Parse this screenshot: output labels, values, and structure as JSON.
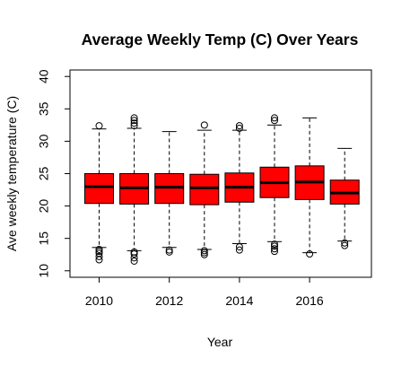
{
  "chart_data": {
    "type": "boxplot",
    "title": "Average Weekly Temp (C) Over Years",
    "xlabel": "Year",
    "ylabel": "Ave weekly temperature (C)",
    "ylim": [
      9,
      41
    ],
    "y_ticks": [
      10,
      15,
      20,
      25,
      30,
      35,
      40
    ],
    "x_ticks": [
      "2010",
      "2012",
      "2014",
      "2016"
    ],
    "categories": [
      "2010",
      "2011",
      "2012",
      "2013",
      "2014",
      "2015",
      "2016",
      "2017"
    ],
    "box_fill": "#ff0000",
    "grid": false,
    "series": [
      {
        "boxes": [
          {
            "q1": 20.4,
            "median": 23.0,
            "q3": 25.0,
            "whisker_low": 13.6,
            "whisker_high": 31.9,
            "outliers": [
              11.7,
              12.2,
              12.7,
              13.0,
              13.3,
              32.4
            ]
          },
          {
            "q1": 20.3,
            "median": 22.8,
            "q3": 25.0,
            "whisker_low": 13.1,
            "whisker_high": 32.0,
            "outliers": [
              11.5,
              12.0,
              12.6,
              12.9,
              32.4,
              32.8,
              33.2,
              33.6
            ]
          },
          {
            "q1": 20.4,
            "median": 22.9,
            "q3": 25.0,
            "whisker_low": 13.6,
            "whisker_high": 31.5,
            "outliers": [
              12.9,
              13.2
            ]
          },
          {
            "q1": 20.2,
            "median": 22.8,
            "q3": 24.9,
            "whisker_low": 13.3,
            "whisker_high": 31.7,
            "outliers": [
              12.5,
              12.8,
              13.1,
              32.5
            ]
          },
          {
            "q1": 20.6,
            "median": 22.9,
            "q3": 25.1,
            "whisker_low": 14.2,
            "whisker_high": 31.7,
            "outliers": [
              13.2,
              13.7,
              32.0,
              32.4
            ]
          },
          {
            "q1": 21.3,
            "median": 23.6,
            "q3": 26.0,
            "whisker_low": 14.5,
            "whisker_high": 32.5,
            "outliers": [
              13.0,
              13.4,
              13.8,
              14.1,
              33.2,
              33.6
            ]
          },
          {
            "q1": 21.0,
            "median": 23.7,
            "q3": 26.2,
            "whisker_low": 12.8,
            "whisker_high": 33.6,
            "outliers": [
              12.6
            ]
          },
          {
            "q1": 20.3,
            "median": 22.0,
            "q3": 24.0,
            "whisker_low": 14.6,
            "whisker_high": 28.9,
            "outliers": [
              13.9,
              14.3
            ]
          }
        ]
      }
    ]
  }
}
